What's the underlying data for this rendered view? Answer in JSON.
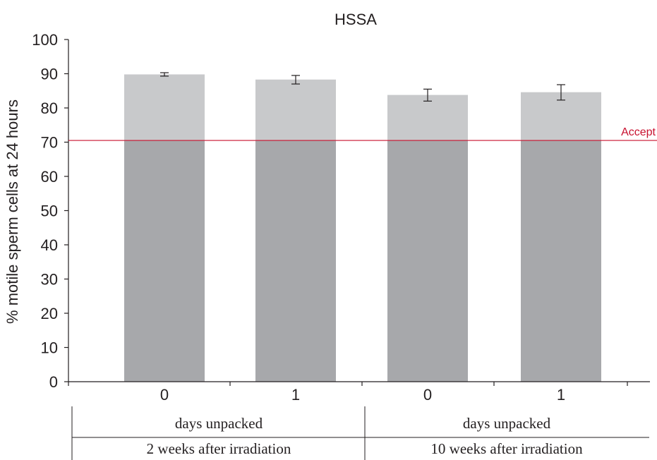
{
  "chart_data": {
    "type": "bar",
    "title": "HSSA",
    "ylabel": "% motile sperm cells at 24 hours",
    "xlabel": "",
    "ylim": [
      0,
      100
    ],
    "yticks": [
      "0",
      "10",
      "20",
      "30",
      "40",
      "50",
      "60",
      "70",
      "80",
      "90",
      "100"
    ],
    "grid": false,
    "categories": [
      "0",
      "1",
      "0",
      "1"
    ],
    "values": [
      89.8,
      88.3,
      83.8,
      84.6
    ],
    "error_low": [
      89.3,
      87.0,
      82.0,
      82.3
    ],
    "error_high": [
      90.3,
      89.5,
      85.5,
      86.8
    ],
    "threshold": {
      "value": 70.5,
      "label": "Accept",
      "color": "#c8102e"
    },
    "colors": {
      "above_threshold": "#c8c9cb",
      "below_threshold": "#a7a8ab",
      "axis": "#231f20"
    },
    "group_labels": {
      "row1": [
        "days unpacked",
        "days unpacked"
      ],
      "row2": [
        "2 weeks after irradiation",
        "10 weeks after irradiation"
      ]
    }
  }
}
